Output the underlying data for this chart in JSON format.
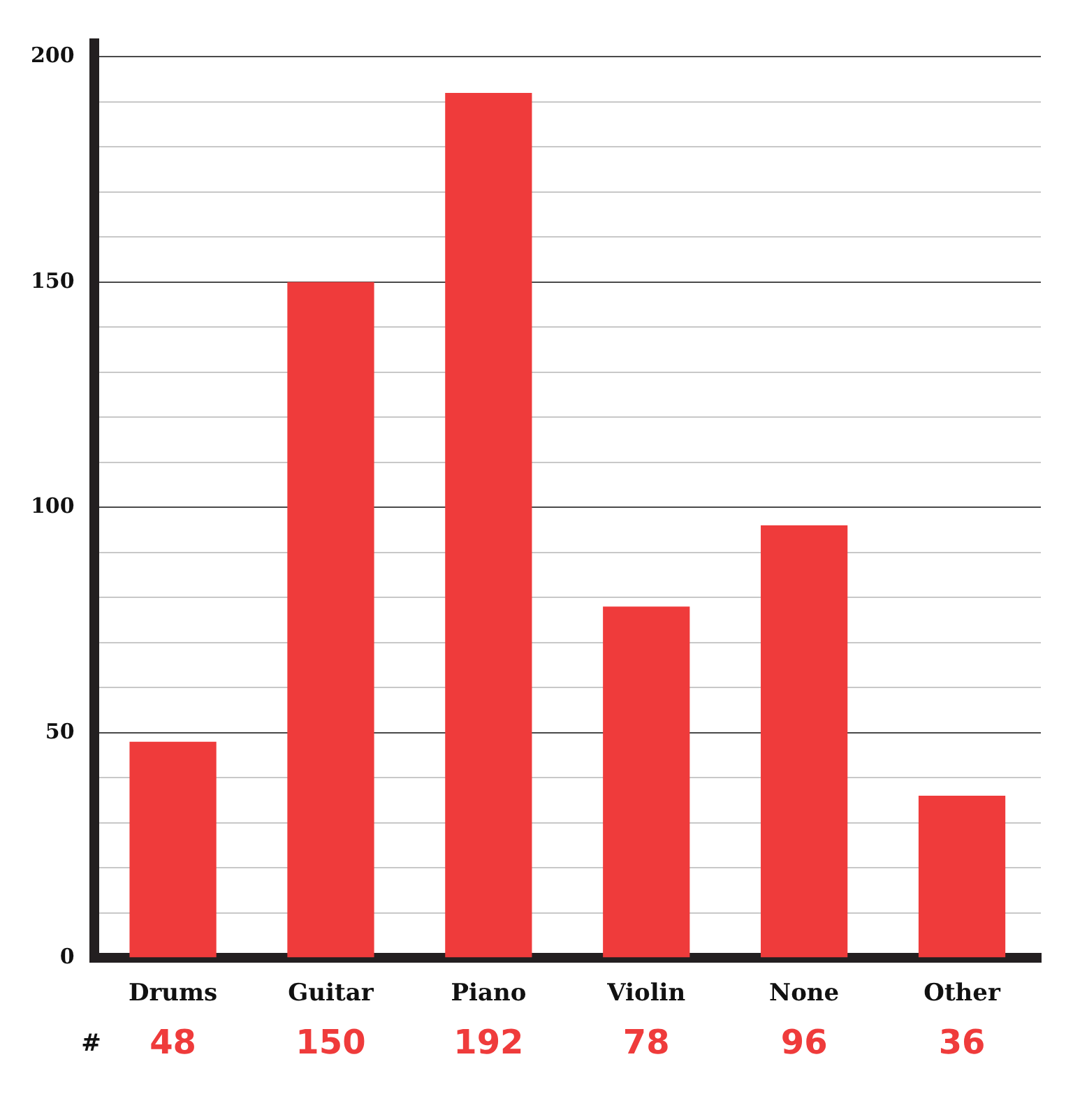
{
  "chart_data": {
    "type": "bar",
    "categories": [
      "Drums",
      "Guitar",
      "Piano",
      "Violin",
      "None",
      "Other"
    ],
    "values": [
      48,
      150,
      192,
      78,
      96,
      36
    ],
    "color": "#ef3b3b",
    "data_labels": true,
    "annotations": [
      "#"
    ],
    "ylim": [
      0,
      203
    ],
    "yticks": [
      0,
      {
        "value": 10,
        "label": null
      },
      {
        "value": 20,
        "label": null
      },
      {
        "value": 30,
        "label": null
      },
      {
        "value": 40,
        "label": null
      },
      50,
      {
        "value": 60,
        "label": null
      },
      {
        "value": 70,
        "label": null
      },
      {
        "value": 80,
        "label": null
      },
      {
        "value": 90,
        "label": null
      },
      100,
      {
        "value": 110,
        "label": null
      },
      {
        "value": 120,
        "label": null
      },
      {
        "value": 130,
        "label": null
      },
      {
        "value": 140,
        "label": null
      },
      150,
      {
        "value": 160,
        "label": null
      },
      {
        "value": 170,
        "label": null
      },
      {
        "value": 180,
        "label": null
      },
      {
        "value": 190,
        "label": null
      },
      200
    ],
    "grid": "y",
    "legend": false
  }
}
